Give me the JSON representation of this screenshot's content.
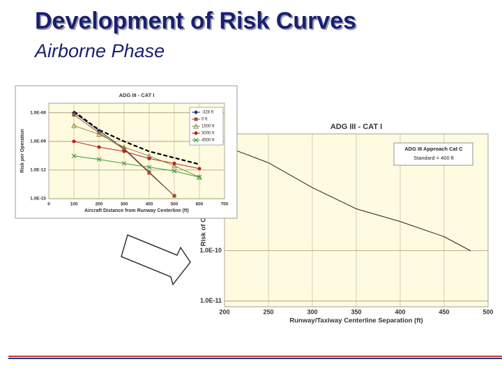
{
  "slide": {
    "title": "Development of Risk Curves",
    "subtitle": "Airborne Phase"
  },
  "chart_data": [
    {
      "type": "line",
      "title": "ADG III - CAT I",
      "y_label": "Risk of Collision",
      "x_label": "Runway/Taxiway Centerline Separation (ft)",
      "log_y": true,
      "grid": true,
      "xlim": [
        200,
        500
      ],
      "xticks": [
        200,
        250,
        300,
        350,
        400,
        450,
        500
      ],
      "ylim": [
        7.7e-12,
        2.1e-08
      ],
      "yticks": [
        {
          "value": 1e-11,
          "label": "1.0E-11"
        },
        {
          "value": 1e-10,
          "label": "1.0E-10"
        }
      ],
      "annotation": [
        "ADG III Approach Cat C",
        "Standard = 400 ft"
      ],
      "x": [
        200,
        250,
        300,
        350,
        400,
        450,
        480
      ],
      "series": [
        {
          "color": "#222222",
          "marker": "none",
          "values": [
            1.2e-08,
            5.6e-09,
            1.8e-09,
            6.8e-10,
            3.8e-10,
            1.9e-10,
            1e-10
          ]
        }
      ]
    },
    {
      "type": "line",
      "title": "ADG III - CAT I",
      "y_label": "Risk per Operation",
      "x_label": "Aircraft Distance from Runway Centerline (ft)",
      "log_y": true,
      "grid": true,
      "legend": "upper right",
      "xlim": [
        0,
        700
      ],
      "xticks": [
        0,
        100,
        200,
        300,
        400,
        500,
        600,
        700
      ],
      "ylim": [
        1e-15,
        1e-05
      ],
      "yticks": [
        {
          "value": 1e-06,
          "label": "1.0E-06"
        },
        {
          "value": 1e-09,
          "label": "1.0E-09"
        },
        {
          "value": 1e-12,
          "label": "1.0E-12"
        },
        {
          "value": 1e-15,
          "label": "1.0E-15"
        }
      ],
      "x": [
        100,
        200,
        300,
        400,
        500,
        600
      ],
      "series": [
        {
          "name": null,
          "color": "#000000",
          "marker": "none",
          "dashed": true,
          "values": [
            1.4e-06,
            1.6e-08,
            1e-09,
            9e-11,
            1.9e-11,
            4e-12
          ]
        },
        {
          "name": "-328 ft",
          "color": "#1f2a6e",
          "marker": "diamond",
          "values": [
            1e-06,
            1.3e-08,
            1.8e-10,
            6e-13,
            2e-15,
            null
          ]
        },
        {
          "name": "0 ft",
          "color": "#a0522d",
          "marker": "square",
          "values": [
            6e-07,
            8e-09,
            1.5e-10,
            5e-13,
            2e-15,
            null
          ]
        },
        {
          "name": "1500 ft",
          "color": "#8b8b3a",
          "marker": "triangle",
          "values": [
            4.5e-08,
            5.6e-09,
            2.5e-10,
            3e-11,
            2.8e-12,
            1.8e-13
          ]
        },
        {
          "name": "3000 ft",
          "color": "#b22222",
          "marker": "circle",
          "values": [
            1e-09,
            2.5e-10,
            9e-11,
            1.6e-11,
            5e-12,
            1.4e-12
          ]
        },
        {
          "name": "4500 ft",
          "color": "#3a9a3a",
          "marker": "x",
          "values": [
            3e-11,
            1.3e-11,
            5e-12,
            2e-12,
            8e-13,
            1.8e-13
          ]
        }
      ]
    }
  ]
}
